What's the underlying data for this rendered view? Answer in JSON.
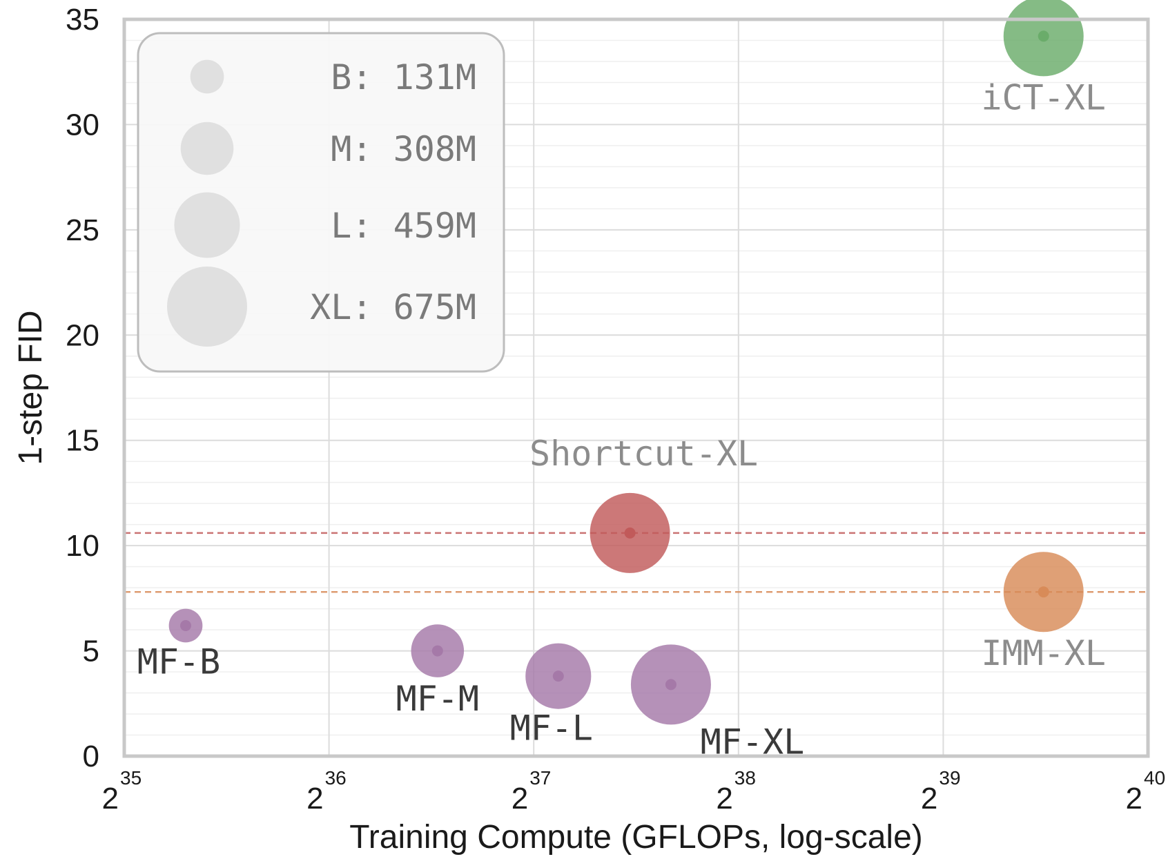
{
  "chart_data": {
    "type": "scatter",
    "xlabel": "Training Compute (GFLOPs, log-scale)",
    "ylabel": "1-step FID",
    "x_scale": "log2",
    "x_ticks": [
      {
        "base": "2",
        "exp": "35",
        "value": 35
      },
      {
        "base": "2",
        "exp": "36",
        "value": 36
      },
      {
        "base": "2",
        "exp": "37",
        "value": 37
      },
      {
        "base": "2",
        "exp": "38",
        "value": 38
      },
      {
        "base": "2",
        "exp": "39",
        "value": 39
      },
      {
        "base": "2",
        "exp": "40",
        "value": 40
      }
    ],
    "y_ticks": [
      "0",
      "5",
      "10",
      "15",
      "20",
      "25",
      "30",
      "35"
    ],
    "xlim_log2": [
      35,
      40
    ],
    "ylim": [
      0,
      35
    ],
    "grid": true,
    "legend": {
      "placement": "top-left",
      "title": "",
      "entries": [
        {
          "label": "B: 131M",
          "size": "B"
        },
        {
          "label": "M: 308M",
          "size": "M"
        },
        {
          "label": "L: 459M",
          "size": "L"
        },
        {
          "label": "XL: 675M",
          "size": "XL"
        }
      ]
    },
    "size_scale": {
      "B": 0.42,
      "M": 0.66,
      "L": 0.82,
      "XL": 1.0
    },
    "points": [
      {
        "label": "MF-B",
        "log2_x": 35.3,
        "y": 6.2,
        "size": "B",
        "color": "#a579a8",
        "label_color": "#3a3a3a",
        "label_pos": "below-left"
      },
      {
        "label": "MF-M",
        "log2_x": 36.53,
        "y": 5.0,
        "size": "M",
        "color": "#a579a8",
        "label_color": "#3a3a3a",
        "label_pos": "below"
      },
      {
        "label": "MF-L",
        "log2_x": 37.12,
        "y": 3.8,
        "size": "L",
        "color": "#a579a8",
        "label_color": "#3a3a3a",
        "label_pos": "below-left"
      },
      {
        "label": "MF-XL",
        "log2_x": 37.67,
        "y": 3.4,
        "size": "XL",
        "color": "#a579a8",
        "label_color": "#3a3a3a",
        "label_pos": "below-right"
      },
      {
        "label": "Shortcut-XL",
        "log2_x": 37.47,
        "y": 10.6,
        "size": "XL",
        "color": "#c15a5a",
        "label_color": "#8c8c8c",
        "label_pos": "above",
        "hline": true
      },
      {
        "label": "IMM-XL",
        "log2_x": 39.49,
        "y": 7.8,
        "size": "XL",
        "color": "#d88b58",
        "label_color": "#8c8c8c",
        "label_pos": "below",
        "hline": true
      },
      {
        "label": "iCT-XL",
        "log2_x": 39.49,
        "y": 34.2,
        "size": "XL",
        "color": "#6aac6a",
        "label_color": "#8c8c8c",
        "label_pos": "below"
      }
    ]
  }
}
